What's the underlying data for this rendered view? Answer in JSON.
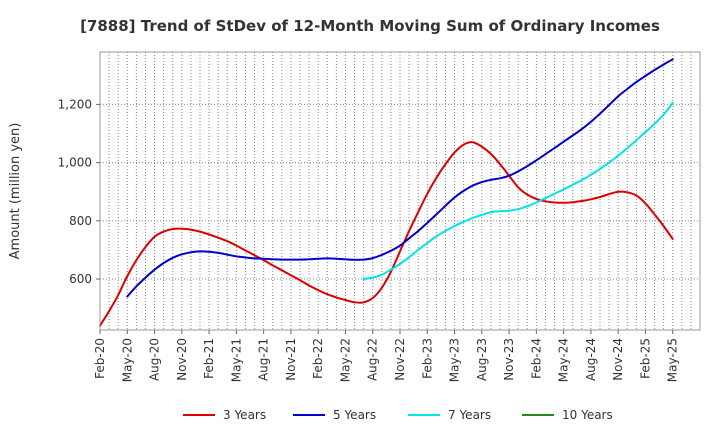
{
  "chart_data": {
    "type": "line",
    "title": "[7888]  Trend of StDev of 12-Month Moving Sum of Ordinary Incomes",
    "xlabel": "",
    "ylabel": "Amount (million yen)",
    "x_tick_labels": [
      "Feb-20",
      "May-20",
      "Aug-20",
      "Nov-20",
      "Feb-21",
      "May-21",
      "Aug-21",
      "Nov-21",
      "Feb-22",
      "May-22",
      "Aug-22",
      "Nov-22",
      "Feb-23",
      "May-23",
      "Aug-23",
      "Nov-23",
      "Feb-24",
      "May-24",
      "Aug-24",
      "Nov-24",
      "Feb-25",
      "May-25"
    ],
    "y_ticks": [
      600,
      800,
      1000,
      1200
    ],
    "y_tick_labels": [
      "600",
      "800",
      "1,000",
      "1,200"
    ],
    "ylim": [
      425,
      1380
    ],
    "x_month_index_range": [
      0,
      63
    ],
    "grid": true,
    "legend_position": "bottom",
    "series": [
      {
        "name": "3 Years",
        "color": "#dd0000",
        "points": [
          [
            0,
            440
          ],
          [
            1,
            490
          ],
          [
            2,
            545
          ],
          [
            3,
            610
          ],
          [
            4,
            665
          ],
          [
            5,
            710
          ],
          [
            6,
            745
          ],
          [
            7,
            763
          ],
          [
            8,
            772
          ],
          [
            9,
            773
          ],
          [
            10,
            770
          ],
          [
            11,
            763
          ],
          [
            12,
            753
          ],
          [
            13,
            742
          ],
          [
            14,
            730
          ],
          [
            15,
            715
          ],
          [
            16,
            698
          ],
          [
            17,
            682
          ],
          [
            18,
            665
          ],
          [
            19,
            647
          ],
          [
            20,
            630
          ],
          [
            21,
            613
          ],
          [
            22,
            596
          ],
          [
            23,
            578
          ],
          [
            24,
            562
          ],
          [
            25,
            548
          ],
          [
            26,
            537
          ],
          [
            27,
            528
          ],
          [
            28,
            520
          ],
          [
            29,
            520
          ],
          [
            30,
            535
          ],
          [
            31,
            570
          ],
          [
            32,
            625
          ],
          [
            33,
            695
          ],
          [
            34,
            765
          ],
          [
            35,
            830
          ],
          [
            36,
            893
          ],
          [
            37,
            948
          ],
          [
            38,
            995
          ],
          [
            39,
            1035
          ],
          [
            40,
            1062
          ],
          [
            41,
            1070
          ],
          [
            42,
            1055
          ],
          [
            43,
            1030
          ],
          [
            44,
            995
          ],
          [
            45,
            955
          ],
          [
            46,
            915
          ],
          [
            47,
            890
          ],
          [
            48,
            875
          ],
          [
            49,
            867
          ],
          [
            50,
            863
          ],
          [
            51,
            862
          ],
          [
            52,
            864
          ],
          [
            53,
            868
          ],
          [
            54,
            874
          ],
          [
            55,
            882
          ],
          [
            56,
            892
          ],
          [
            57,
            900
          ],
          [
            58,
            898
          ],
          [
            59,
            887
          ],
          [
            60,
            860
          ],
          [
            61,
            822
          ],
          [
            62,
            782
          ],
          [
            63,
            738
          ]
        ]
      },
      {
        "name": "5 Years",
        "color": "#0000cc",
        "points": [
          [
            3,
            540
          ],
          [
            4,
            575
          ],
          [
            5,
            605
          ],
          [
            6,
            632
          ],
          [
            7,
            655
          ],
          [
            8,
            673
          ],
          [
            9,
            685
          ],
          [
            10,
            692
          ],
          [
            11,
            695
          ],
          [
            12,
            694
          ],
          [
            13,
            690
          ],
          [
            14,
            684
          ],
          [
            15,
            678
          ],
          [
            16,
            674
          ],
          [
            17,
            671
          ],
          [
            18,
            670
          ],
          [
            19,
            668
          ],
          [
            20,
            667
          ],
          [
            21,
            667
          ],
          [
            22,
            667
          ],
          [
            23,
            668
          ],
          [
            24,
            670
          ],
          [
            25,
            671
          ],
          [
            26,
            670
          ],
          [
            27,
            668
          ],
          [
            28,
            666
          ],
          [
            29,
            667
          ],
          [
            30,
            672
          ],
          [
            31,
            683
          ],
          [
            32,
            697
          ],
          [
            33,
            715
          ],
          [
            34,
            740
          ],
          [
            35,
            765
          ],
          [
            36,
            793
          ],
          [
            37,
            822
          ],
          [
            38,
            852
          ],
          [
            39,
            880
          ],
          [
            40,
            903
          ],
          [
            41,
            921
          ],
          [
            42,
            933
          ],
          [
            43,
            941
          ],
          [
            44,
            946
          ],
          [
            45,
            955
          ],
          [
            46,
            970
          ],
          [
            47,
            988
          ],
          [
            48,
            1008
          ],
          [
            49,
            1029
          ],
          [
            50,
            1050
          ],
          [
            51,
            1072
          ],
          [
            52,
            1093
          ],
          [
            53,
            1115
          ],
          [
            54,
            1140
          ],
          [
            55,
            1168
          ],
          [
            56,
            1198
          ],
          [
            57,
            1228
          ],
          [
            58,
            1253
          ],
          [
            59,
            1277
          ],
          [
            60,
            1298
          ],
          [
            61,
            1318
          ],
          [
            62,
            1337
          ],
          [
            63,
            1355
          ]
        ]
      },
      {
        "name": "7 Years",
        "color": "#00e5e5",
        "points": [
          [
            29,
            600
          ],
          [
            30,
            605
          ],
          [
            31,
            615
          ],
          [
            32,
            632
          ],
          [
            33,
            652
          ],
          [
            34,
            675
          ],
          [
            35,
            700
          ],
          [
            36,
            724
          ],
          [
            37,
            747
          ],
          [
            38,
            765
          ],
          [
            39,
            782
          ],
          [
            40,
            797
          ],
          [
            41,
            810
          ],
          [
            42,
            820
          ],
          [
            43,
            830
          ],
          [
            44,
            833
          ],
          [
            45,
            835
          ],
          [
            46,
            840
          ],
          [
            47,
            850
          ],
          [
            48,
            863
          ],
          [
            49,
            878
          ],
          [
            50,
            893
          ],
          [
            51,
            908
          ],
          [
            52,
            924
          ],
          [
            53,
            940
          ],
          [
            54,
            958
          ],
          [
            55,
            978
          ],
          [
            56,
            1000
          ],
          [
            57,
            1024
          ],
          [
            58,
            1050
          ],
          [
            59,
            1077
          ],
          [
            60,
            1105
          ],
          [
            61,
            1133
          ],
          [
            62,
            1165
          ],
          [
            63,
            1205
          ]
        ]
      },
      {
        "name": "10 Years",
        "color": "#228b22",
        "points": []
      }
    ]
  }
}
